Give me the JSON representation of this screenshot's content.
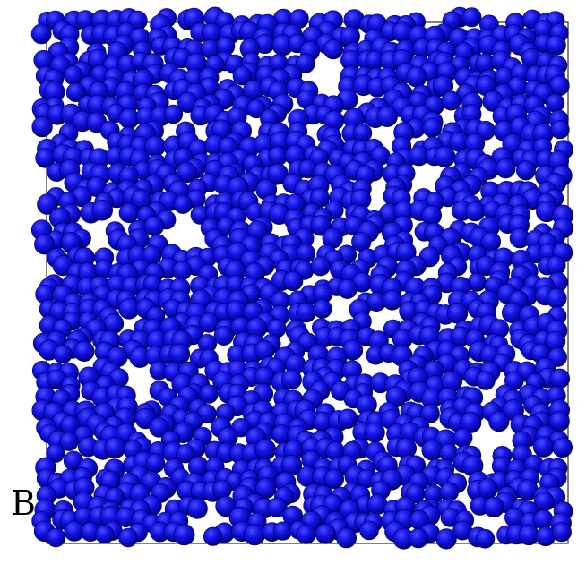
{
  "figure": {
    "panel_label": "B",
    "description_visible": false,
    "colors": {
      "particle_fill": "#1414e6",
      "particle_dark": "#00007a",
      "particle_highlight": "#4a4aff",
      "box_border": "#000000",
      "background": "#ffffff"
    },
    "icon": "particle-packing-render"
  }
}
